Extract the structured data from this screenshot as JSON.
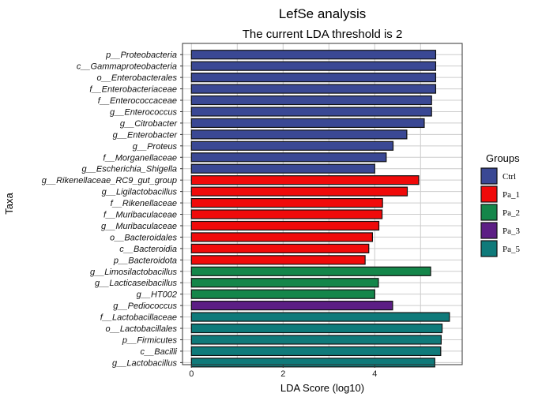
{
  "chart_data": {
    "type": "bar",
    "orientation": "horizontal",
    "title": "LefSe analysis",
    "subtitle": "The current LDA threshold is 2",
    "xlabel": "LDA Score (log10)",
    "ylabel": "Taxa",
    "xlim": [
      0,
      5.9
    ],
    "xticks": [
      0,
      2,
      4
    ],
    "grid": true,
    "legend": {
      "title": "Groups",
      "position": "right",
      "entries": [
        "Ctrl",
        "Pa_1",
        "Pa_2",
        "Pa_3",
        "Pa_5"
      ]
    },
    "colors": {
      "Ctrl": "#3A4894",
      "Pa_1": "#F00A0A",
      "Pa_2": "#14864A",
      "Pa_3": "#5C1E85",
      "Pa_5": "#0F7A7A"
    },
    "bars": [
      {
        "taxon": "p__Proteobacteria",
        "group": "Ctrl",
        "value": 5.33
      },
      {
        "taxon": "c__Gammaproteobacteria",
        "group": "Ctrl",
        "value": 5.33
      },
      {
        "taxon": "o__Enterobacterales",
        "group": "Ctrl",
        "value": 5.33
      },
      {
        "taxon": "f__Enterobacteriaceae",
        "group": "Ctrl",
        "value": 5.33
      },
      {
        "taxon": "f__Enterococcaceae",
        "group": "Ctrl",
        "value": 5.24
      },
      {
        "taxon": "g__Enterococcus",
        "group": "Ctrl",
        "value": 5.24
      },
      {
        "taxon": "g__Citrobacter",
        "group": "Ctrl",
        "value": 5.08
      },
      {
        "taxon": "g__Enterobacter",
        "group": "Ctrl",
        "value": 4.7
      },
      {
        "taxon": "g__Proteus",
        "group": "Ctrl",
        "value": 4.4
      },
      {
        "taxon": "f__Morganellaceae",
        "group": "Ctrl",
        "value": 4.25
      },
      {
        "taxon": "g__Escherichia_Shigella",
        "group": "Ctrl",
        "value": 4.0
      },
      {
        "taxon": "g__Rikenellaceae_RC9_gut_group",
        "group": "Pa_1",
        "value": 4.96
      },
      {
        "taxon": "g__Ligilactobacillus",
        "group": "Pa_1",
        "value": 4.71
      },
      {
        "taxon": "f__Rikenellaceae",
        "group": "Pa_1",
        "value": 4.17
      },
      {
        "taxon": "f__Muribaculaceae",
        "group": "Pa_1",
        "value": 4.16
      },
      {
        "taxon": "g__Muribaculaceae",
        "group": "Pa_1",
        "value": 4.09
      },
      {
        "taxon": "o__Bacteroidales",
        "group": "Pa_1",
        "value": 3.95
      },
      {
        "taxon": "c__Bacteroidia",
        "group": "Pa_1",
        "value": 3.87
      },
      {
        "taxon": "p__Bacteroidota",
        "group": "Pa_1",
        "value": 3.79
      },
      {
        "taxon": "g__Limosilactobacillus",
        "group": "Pa_2",
        "value": 5.22
      },
      {
        "taxon": "g__Lacticaseibacillus",
        "group": "Pa_2",
        "value": 4.08
      },
      {
        "taxon": "g__HT002",
        "group": "Pa_2",
        "value": 4.0
      },
      {
        "taxon": "g__Pediococcus",
        "group": "Pa_3",
        "value": 4.39
      },
      {
        "taxon": "f__Lactobacillaceae",
        "group": "Pa_5",
        "value": 5.63
      },
      {
        "taxon": "o__Lactobacillales",
        "group": "Pa_5",
        "value": 5.47
      },
      {
        "taxon": "p__Firmicutes",
        "group": "Pa_5",
        "value": 5.45
      },
      {
        "taxon": "c__Bacilli",
        "group": "Pa_5",
        "value": 5.44
      },
      {
        "taxon": "g__Lactobacillus",
        "group": "Pa_5",
        "value": 5.31
      }
    ]
  }
}
